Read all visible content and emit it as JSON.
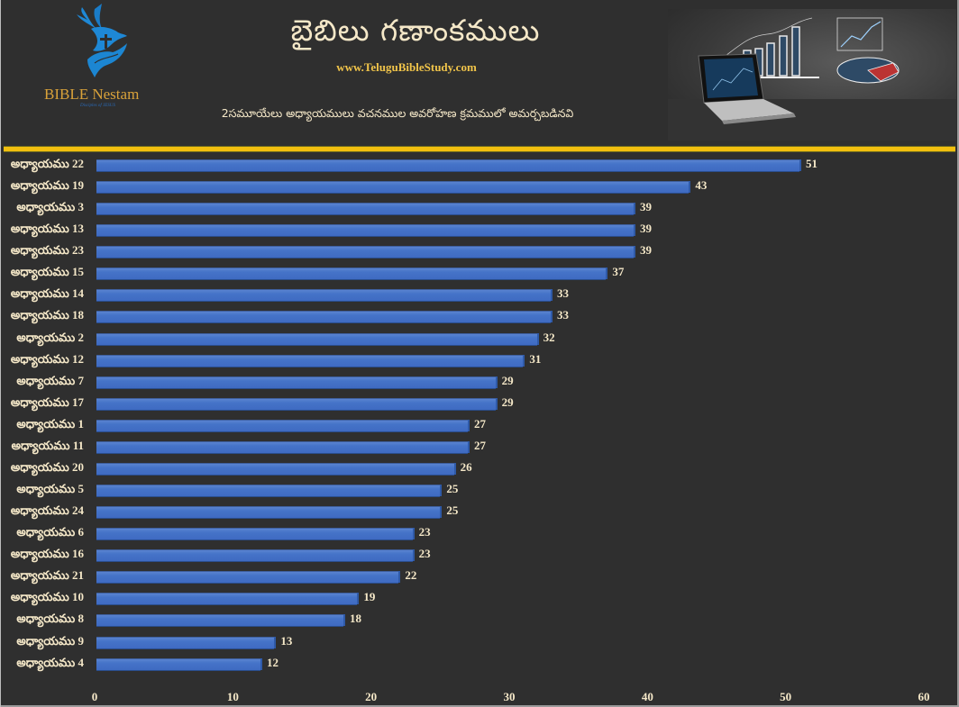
{
  "header": {
    "logo_text": "BIBLE Nestam",
    "logo_tagline": "Disciples of JESUS",
    "title": "బైబిలు గణాంకములు",
    "website": "www.TeluguBibleStudy.com",
    "subtitle": "2సమూయేలు అధ్యాయములు వచనముల అవరోహణ క్రమములో అమర్చబడినవి"
  },
  "colors": {
    "background": "#2f2f2f",
    "bar": "#4472c4",
    "divider": "#f2bf0f",
    "text": "#f5e8c8",
    "website": "#f0c44a",
    "logo_text": "#d9a23a",
    "logo_bird": "#1e88d6"
  },
  "chart_data": {
    "type": "bar",
    "orientation": "horizontal",
    "title": "బైబిలు గణాంకములు",
    "subtitle": "2సమూయేలు అధ్యాయములు వచనముల అవరోహణ క్రమములో అమర్చబడినవి",
    "xlabel": "",
    "ylabel": "",
    "xlim": [
      0,
      60
    ],
    "x_ticks": [
      "0",
      "10",
      "20",
      "30",
      "40",
      "50",
      "60"
    ],
    "grid": false,
    "legend": null,
    "data_labels": true,
    "categories": [
      "అధ్యాయము 22",
      "అధ్యాయము 19",
      "అధ్యాయము 3",
      "అధ్యాయము 13",
      "అధ్యాయము 23",
      "అధ్యాయము 15",
      "అధ్యాయము 14",
      "అధ్యాయము 18",
      "అధ్యాయము 2",
      "అధ్యాయము 12",
      "అధ్యాయము 7",
      "అధ్యాయము 17",
      "అధ్యాయము 1",
      "అధ్యాయము 11",
      "అధ్యాయము 20",
      "అధ్యాయము 5",
      "అధ్యాయము 24",
      "అధ్యాయము 6",
      "అధ్యాయము 16",
      "అధ్యాయము 21",
      "అధ్యాయము 10",
      "అధ్యాయము 8",
      "అధ్యాయము 9",
      "అధ్యాయము 4"
    ],
    "values": [
      51,
      43,
      39,
      39,
      39,
      37,
      33,
      33,
      32,
      31,
      29,
      29,
      27,
      27,
      26,
      25,
      25,
      23,
      23,
      22,
      19,
      18,
      13,
      12
    ]
  }
}
